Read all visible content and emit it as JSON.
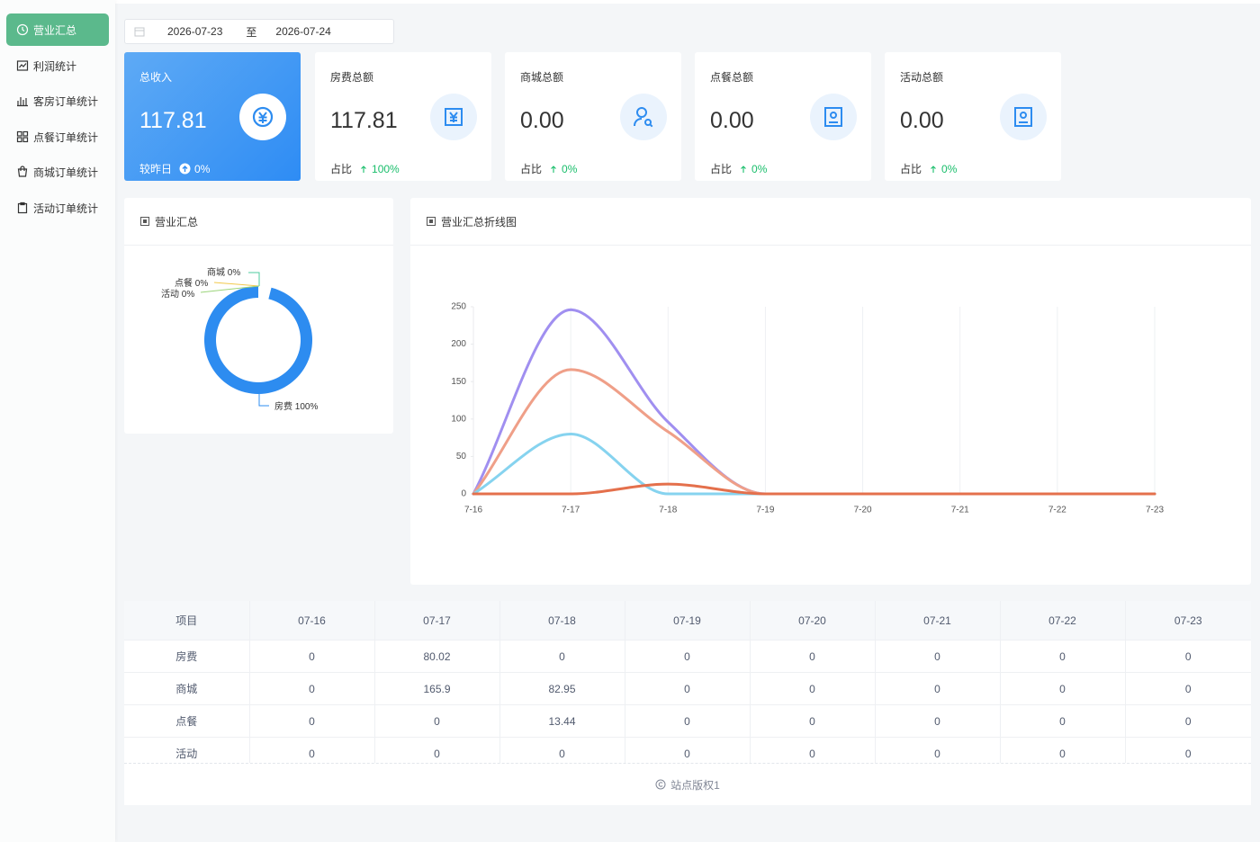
{
  "sidebar": {
    "items": [
      "营业汇总",
      "利润统计",
      "客房订单统计",
      "点餐订单统计",
      "商城订单统计",
      "活动订单统计"
    ],
    "active": 0
  },
  "date_range": {
    "start": "2026-07-23",
    "separator": "至",
    "end": "2026-07-24"
  },
  "cards": [
    {
      "title": "总收入",
      "value": "117.81",
      "footer_label": "较昨日",
      "footer_value": "0%"
    },
    {
      "title": "房费总额",
      "value": "117.81",
      "footer_label": "占比",
      "footer_value": "100%"
    },
    {
      "title": "商城总额",
      "value": "0.00",
      "footer_label": "占比",
      "footer_value": "0%"
    },
    {
      "title": "点餐总额",
      "value": "0.00",
      "footer_label": "占比",
      "footer_value": "0%"
    },
    {
      "title": "活动总额",
      "value": "0.00",
      "footer_label": "占比",
      "footer_value": "0%"
    }
  ],
  "chart_data": [
    {
      "type": "pie",
      "title": "营业汇总",
      "categories": [
        "商城",
        "点餐",
        "活动",
        "房费"
      ],
      "values": [
        0,
        0,
        0,
        100
      ],
      "value_labels": [
        "0%",
        "0%",
        "0%",
        "100%"
      ],
      "colors": [
        "#4ecb9f",
        "#f2c94c",
        "#9bd47a",
        "#2d8cf0"
      ],
      "donut": true
    },
    {
      "type": "line",
      "title": "营业汇总折线图",
      "categories": [
        "7-16",
        "7-17",
        "7-18",
        "7-19",
        "7-20",
        "7-21",
        "7-22",
        "7-23"
      ],
      "series": [
        {
          "color": "#a08ff0",
          "values": [
            0,
            246,
            96,
            0,
            0,
            0,
            0,
            0
          ]
        },
        {
          "color": "#ef9f88",
          "values": [
            0,
            166,
            83,
            0,
            0,
            0,
            0,
            0
          ]
        },
        {
          "color": "#86d3ef",
          "values": [
            0,
            80,
            0,
            0,
            0,
            0,
            0,
            0
          ]
        },
        {
          "color": "#e4704c",
          "values": [
            0,
            0,
            13,
            0,
            0,
            0,
            0,
            0
          ]
        }
      ],
      "ylim": [
        0,
        250
      ],
      "yticks": [
        0,
        50,
        100,
        150,
        200,
        250
      ],
      "xgrid": true,
      "smooth": true
    }
  ],
  "table": {
    "header": [
      "项目",
      "07-16",
      "07-17",
      "07-18",
      "07-19",
      "07-20",
      "07-21",
      "07-22",
      "07-23"
    ],
    "rows": [
      [
        "房费",
        0,
        80.02,
        0,
        0,
        0,
        0,
        0,
        0
      ],
      [
        "商城",
        0,
        165.9,
        82.95,
        0,
        0,
        0,
        0,
        0
      ],
      [
        "点餐",
        0,
        0,
        13.44,
        0,
        0,
        0,
        0,
        0
      ],
      [
        "活动",
        0,
        0,
        0,
        0,
        0,
        0,
        0,
        0
      ]
    ]
  },
  "footer": {
    "text": "站点版权1"
  }
}
